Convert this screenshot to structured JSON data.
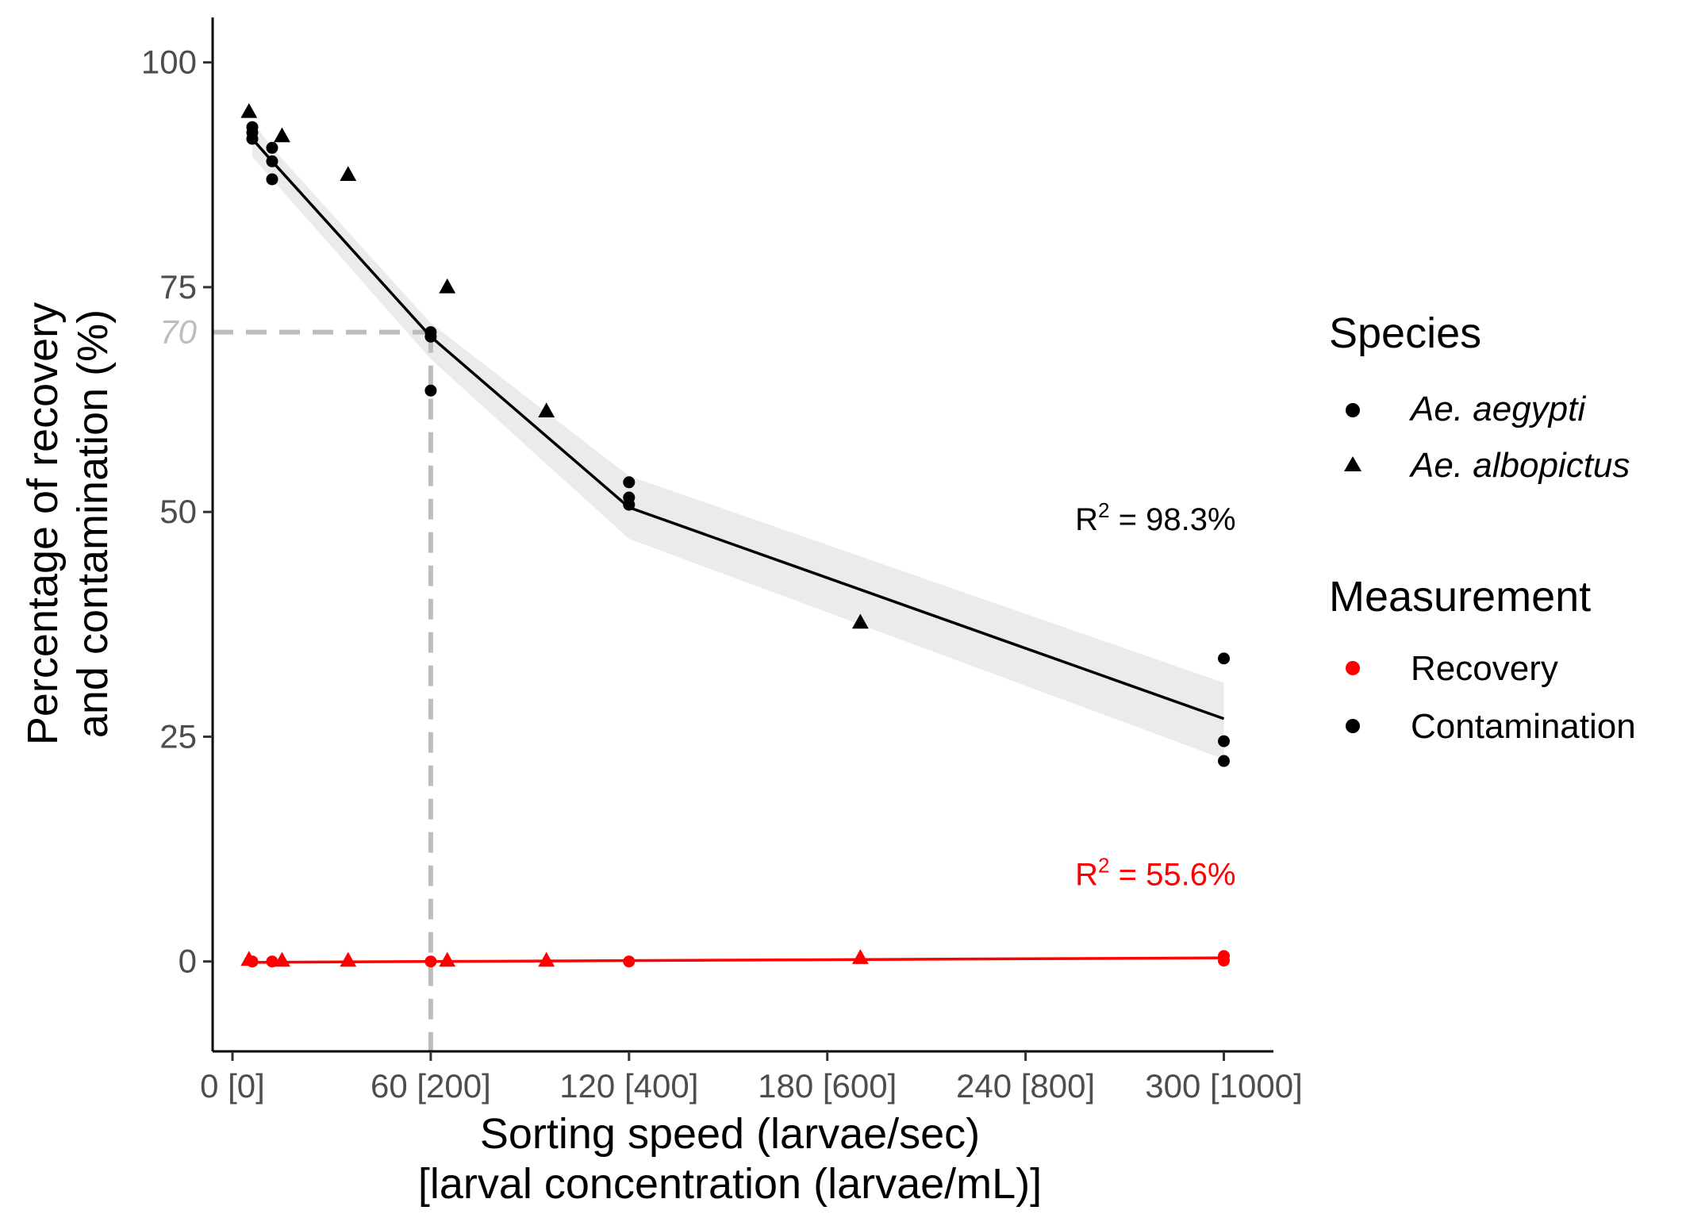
{
  "chart_data": {
    "type": "scatter",
    "xlabel_line1": "Sorting speed (larvae/sec)",
    "xlabel_line2": "[larval concentration (larvae/mL)]",
    "ylabel_line1": "Percentage of recovery",
    "ylabel_line2": "and contamination (%)",
    "xlim": [
      -6,
      315
    ],
    "ylim": [
      -10,
      105
    ],
    "x_ticks": [
      {
        "value": 0,
        "label": "0 [0]"
      },
      {
        "value": 60,
        "label": "60 [200]"
      },
      {
        "value": 120,
        "label": "120 [400]"
      },
      {
        "value": 180,
        "label": "180 [600]"
      },
      {
        "value": 240,
        "label": "240 [800]"
      },
      {
        "value": 300,
        "label": "300 [1000]"
      }
    ],
    "y_ticks": [
      {
        "value": 0,
        "label": "0"
      },
      {
        "value": 25,
        "label": "25"
      },
      {
        "value": 50,
        "label": "50"
      },
      {
        "value": 75,
        "label": "75"
      },
      {
        "value": 100,
        "label": "100"
      }
    ],
    "reference": {
      "x": 60,
      "y": 70,
      "y_label": "70",
      "color": "#bdbdbd"
    },
    "legend": {
      "species_title": "Species",
      "species": [
        {
          "label": "Ae. aegypti",
          "shape": "circle"
        },
        {
          "label": "Ae. albopictus",
          "shape": "triangle"
        }
      ],
      "measurement_title": "Measurement",
      "measurement": [
        {
          "label": "Recovery",
          "color": "#ff0000"
        },
        {
          "label": "Contamination",
          "color": "#000000"
        }
      ]
    },
    "series": [
      {
        "name": "Contamination",
        "color": "#000000",
        "fit_x": [
          6,
          12,
          60,
          120,
          300
        ],
        "fit_y": [
          91.5,
          89,
          69.5,
          50.5,
          27
        ],
        "band_upper": [
          93.5,
          90.5,
          71,
          54,
          31
        ],
        "band_lower": [
          89.5,
          87,
          67,
          47,
          22.5
        ],
        "r2_label": "R",
        "r2_sup": "2",
        "r2_value": " = 98.3%",
        "r2_pos": [
          300,
          48
        ],
        "points": [
          {
            "x": 6,
            "y": 92.8,
            "shape": "circle"
          },
          {
            "x": 6,
            "y": 92.2,
            "shape": "circle"
          },
          {
            "x": 6,
            "y": 91.5,
            "shape": "circle"
          },
          {
            "x": 12,
            "y": 90.5,
            "shape": "circle"
          },
          {
            "x": 12,
            "y": 89,
            "shape": "circle"
          },
          {
            "x": 12,
            "y": 87,
            "shape": "circle"
          },
          {
            "x": 60,
            "y": 70,
            "shape": "circle"
          },
          {
            "x": 60,
            "y": 69.5,
            "shape": "circle"
          },
          {
            "x": 60,
            "y": 63.5,
            "shape": "circle"
          },
          {
            "x": 120,
            "y": 53.3,
            "shape": "circle"
          },
          {
            "x": 120,
            "y": 51.6,
            "shape": "circle"
          },
          {
            "x": 120,
            "y": 50.8,
            "shape": "circle"
          },
          {
            "x": 300,
            "y": 33.7,
            "shape": "circle"
          },
          {
            "x": 300,
            "y": 24.5,
            "shape": "circle"
          },
          {
            "x": 300,
            "y": 22.3,
            "shape": "circle"
          },
          {
            "x": 5,
            "y": 94.5,
            "shape": "triangle"
          },
          {
            "x": 15,
            "y": 91.8,
            "shape": "triangle"
          },
          {
            "x": 35,
            "y": 87.5,
            "shape": "triangle"
          },
          {
            "x": 65,
            "y": 75,
            "shape": "triangle"
          },
          {
            "x": 95,
            "y": 61.2,
            "shape": "triangle"
          },
          {
            "x": 190,
            "y": 37.7,
            "shape": "triangle"
          }
        ]
      },
      {
        "name": "Recovery",
        "color": "#ff0000",
        "fit_x": [
          5,
          300
        ],
        "fit_y": [
          -0.1,
          0.4
        ],
        "r2_label": "R",
        "r2_sup": "2",
        "r2_value": " = 55.6%",
        "r2_pos": [
          300,
          8.5
        ],
        "points": [
          {
            "x": 6,
            "y": 0.0,
            "shape": "circle"
          },
          {
            "x": 12,
            "y": 0.0,
            "shape": "circle"
          },
          {
            "x": 60,
            "y": 0.0,
            "shape": "circle"
          },
          {
            "x": 120,
            "y": 0.0,
            "shape": "circle"
          },
          {
            "x": 300,
            "y": 0.6,
            "shape": "circle"
          },
          {
            "x": 300,
            "y": 0.1,
            "shape": "circle"
          },
          {
            "x": 5,
            "y": 0.2,
            "shape": "triangle"
          },
          {
            "x": 15,
            "y": 0.1,
            "shape": "triangle"
          },
          {
            "x": 35,
            "y": 0.1,
            "shape": "triangle"
          },
          {
            "x": 65,
            "y": 0.1,
            "shape": "triangle"
          },
          {
            "x": 95,
            "y": 0.1,
            "shape": "triangle"
          },
          {
            "x": 190,
            "y": 0.4,
            "shape": "triangle"
          }
        ]
      }
    ]
  }
}
